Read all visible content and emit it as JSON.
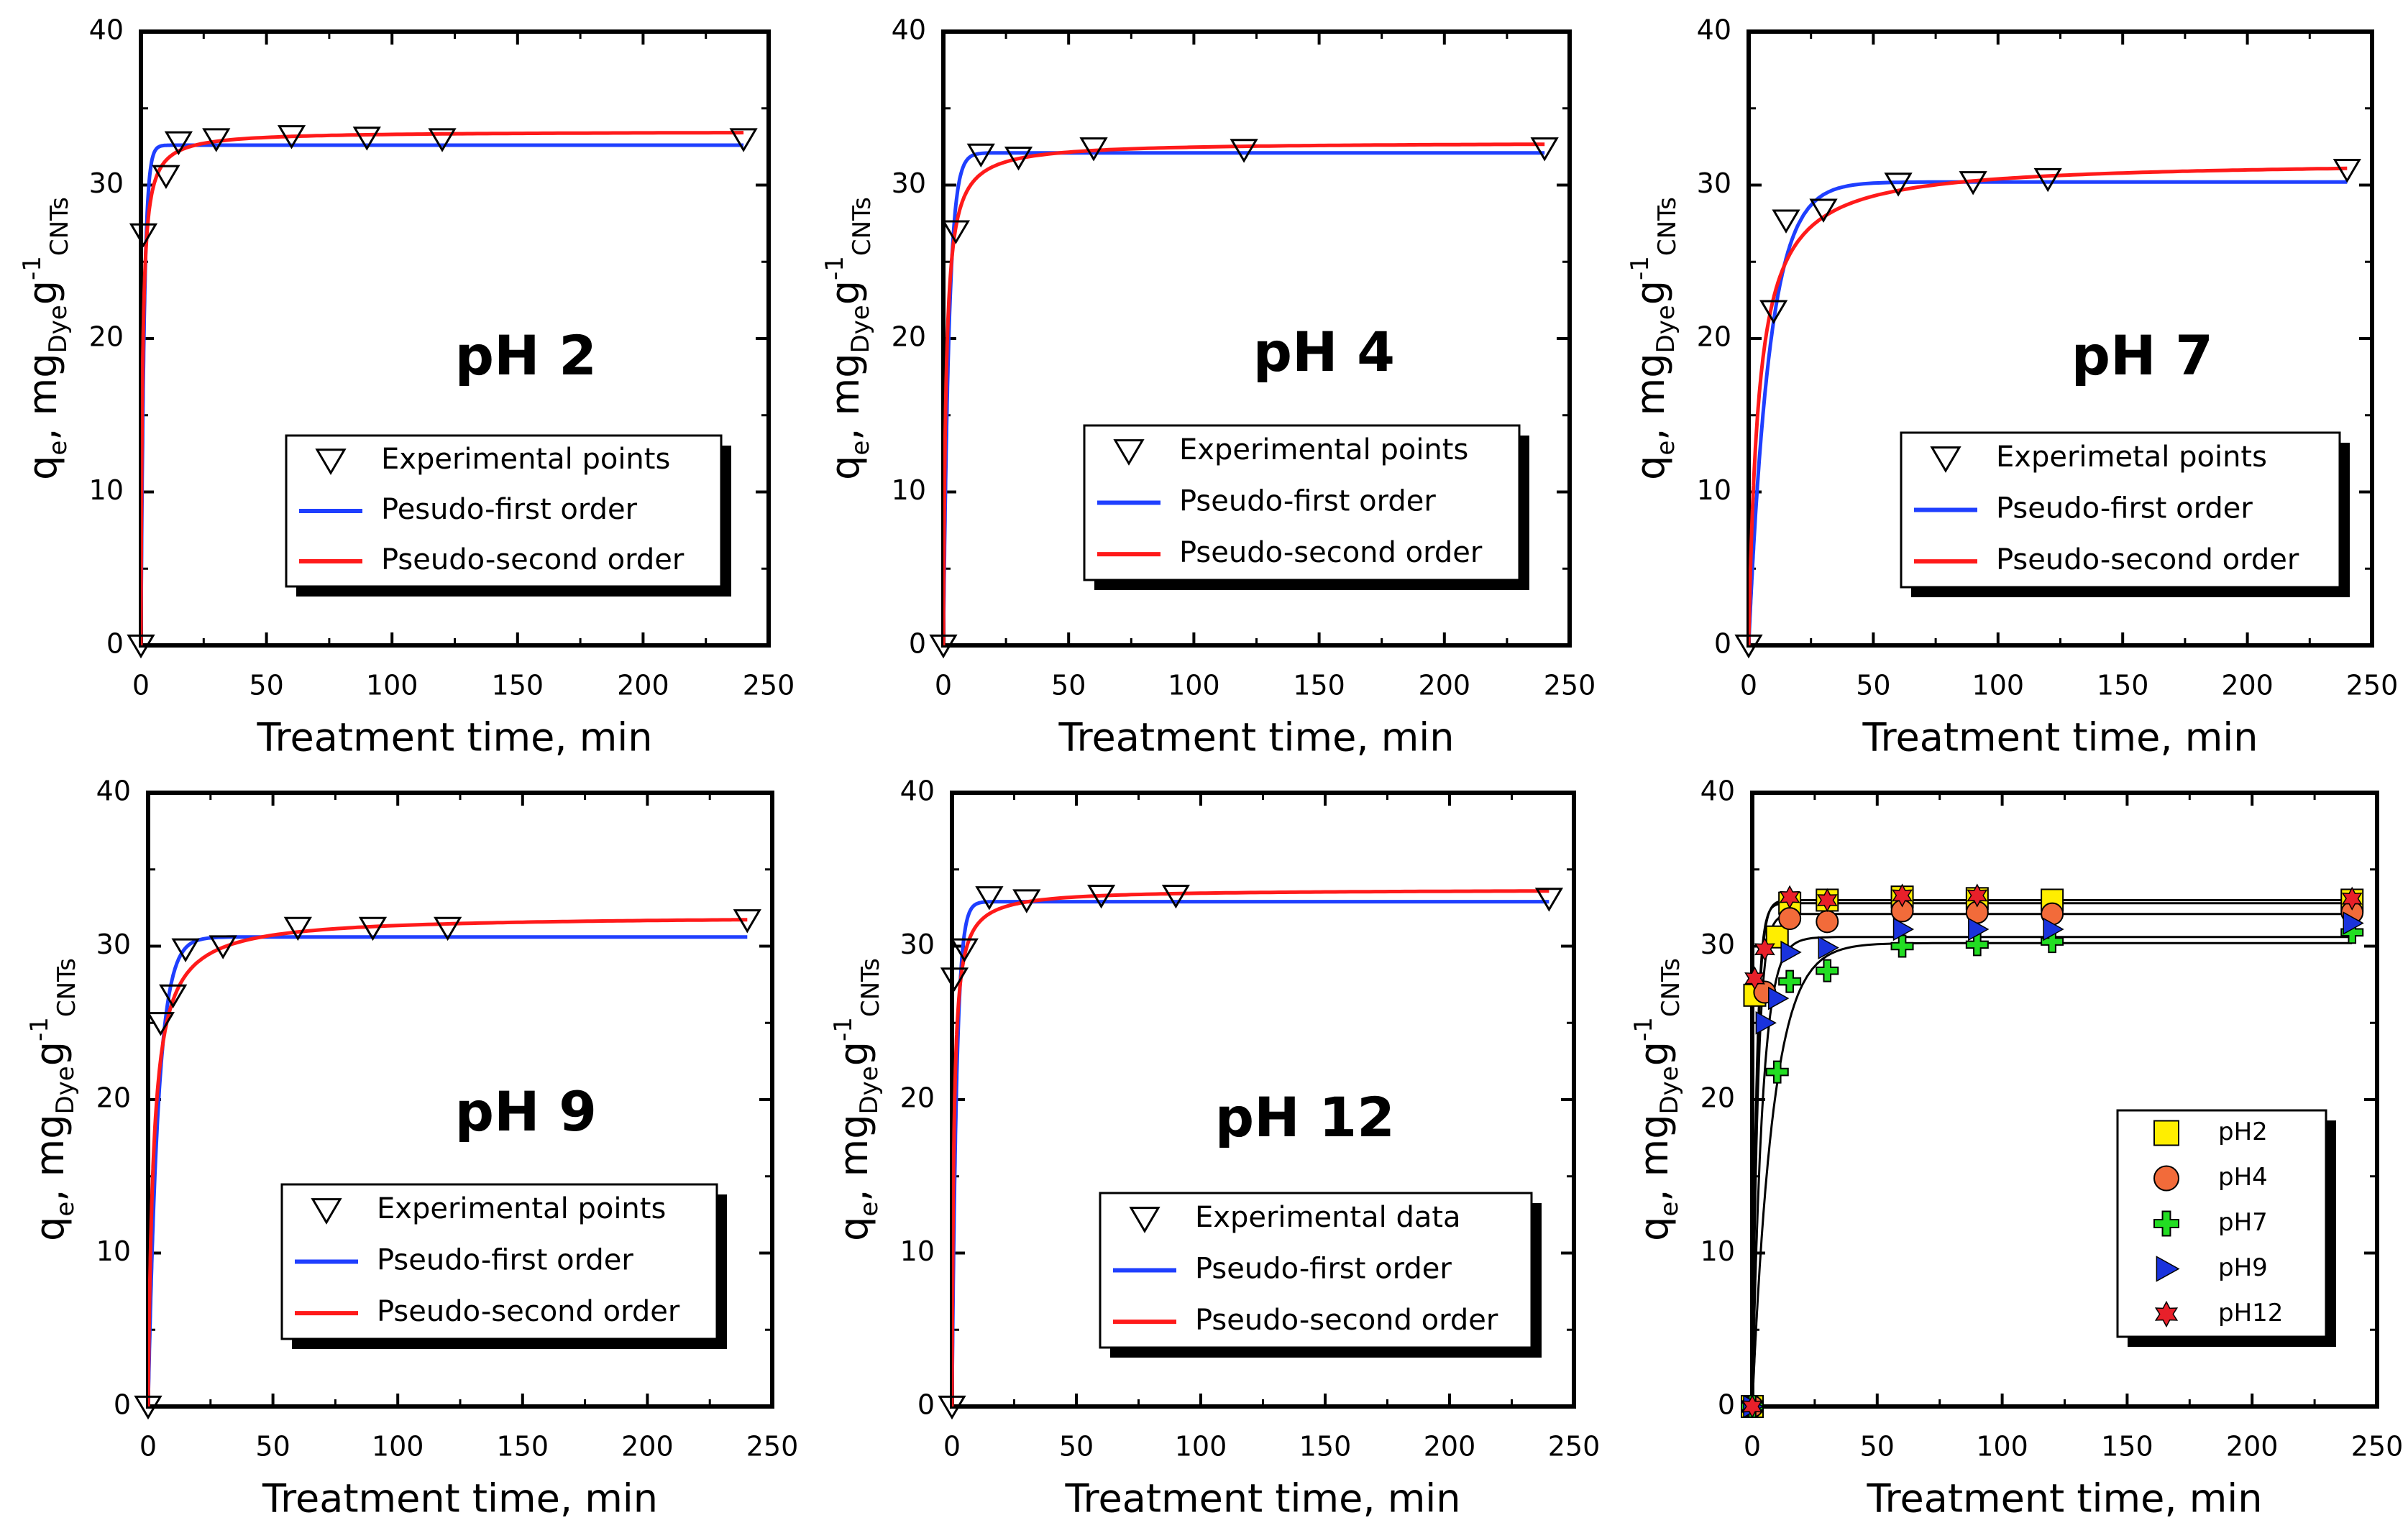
{
  "colors": {
    "pfo": "#1f3fff",
    "pso": "#ff1a1a",
    "fit_black": "#000000",
    "pH2": "#ffee00",
    "pH4": "#f26b3a",
    "pH7": "#22dd22",
    "pH9": "#1a33dd",
    "pH12": "#e8202a"
  },
  "chart_data": [
    {
      "type": "scatter",
      "title": "pH 2",
      "xlabel": "Treatment time, min",
      "ylabel": "q",
      "ylabel_sub1": "e",
      "ylabel_main2": ", mg",
      "ylabel_sub2": "Dye",
      "ylabel_main3": "g",
      "ylabel_sup": "-1",
      "ylabel_sub3": "CNTs",
      "xlim": [
        0,
        250
      ],
      "ylim": [
        0,
        40
      ],
      "xticks": [
        "0",
        "50",
        "100",
        "150",
        "200",
        "250"
      ],
      "yticks": [
        "0",
        "10",
        "20",
        "30",
        "40"
      ],
      "legend": [
        "Experimental points",
        "Pesudo-first order",
        "Pseudo-second order"
      ],
      "series": [
        {
          "name": "Experimental points",
          "x": [
            0,
            1,
            10,
            15,
            30,
            60,
            90,
            120,
            240
          ],
          "y": [
            0,
            26.8,
            30.6,
            32.8,
            33.0,
            33.2,
            33.1,
            33.0,
            33.0
          ]
        },
        {
          "name": "Pesudo-first order",
          "qe": 32.6,
          "k": 0.8
        },
        {
          "name": "Pseudo-second order",
          "qe": 33.5,
          "k": 0.05
        }
      ]
    },
    {
      "type": "scatter",
      "title": "pH 4",
      "xlabel": "Treatment time, min",
      "ylabel": "q",
      "ylabel_sub1": "e",
      "ylabel_main2": ", mg",
      "ylabel_sub2": "Dye",
      "ylabel_main3": "g",
      "ylabel_sup": "-1",
      "ylabel_sub3": "CNTs",
      "xlim": [
        0,
        250
      ],
      "ylim": [
        0,
        40
      ],
      "xticks": [
        "0",
        "50",
        "100",
        "150",
        "200",
        "250"
      ],
      "yticks": [
        "0",
        "10",
        "20",
        "30",
        "40"
      ],
      "legend": [
        "Experimental points",
        "Pseudo-first order",
        "Pseudo-second order"
      ],
      "series": [
        {
          "name": "Experimental points",
          "x": [
            0,
            5,
            15,
            30,
            60,
            120,
            240
          ],
          "y": [
            0,
            27.0,
            32.0,
            31.8,
            32.4,
            32.3,
            32.4
          ]
        },
        {
          "name": "Pseudo-first order",
          "qe": 32.1,
          "k": 0.45
        },
        {
          "name": "Pseudo-second order",
          "qe": 32.8,
          "k": 0.03
        }
      ]
    },
    {
      "type": "scatter",
      "title": "pH 7",
      "xlabel": "Treatment time, min",
      "ylabel": "q",
      "ylabel_sub1": "e",
      "ylabel_main2": ", mg",
      "ylabel_sub2": "Dye",
      "ylabel_main3": "g",
      "ylabel_sup": "-1",
      "ylabel_sub3": "CNTs",
      "xlim": [
        0,
        250
      ],
      "ylim": [
        0,
        40
      ],
      "xticks": [
        "0",
        "50",
        "100",
        "150",
        "200",
        "250"
      ],
      "yticks": [
        "0",
        "10",
        "20",
        "30",
        "40"
      ],
      "legend": [
        "Experimetal points",
        "Pseudo-first order",
        "Pseudo-second order"
      ],
      "series": [
        {
          "name": "Experimetal points",
          "x": [
            0,
            10,
            15,
            30,
            60,
            90,
            120,
            240
          ],
          "y": [
            0,
            21.8,
            27.7,
            28.4,
            30.1,
            30.2,
            30.4,
            31.0
          ]
        },
        {
          "name": "Pseudo-first order",
          "qe": 30.2,
          "k": 0.12
        },
        {
          "name": "Pseudo-second order",
          "qe": 31.6,
          "k": 0.008
        }
      ]
    },
    {
      "type": "scatter",
      "title": "pH 9",
      "xlabel": "Treatment time, min",
      "ylabel": "q",
      "ylabel_sub1": "e",
      "ylabel_main2": ", mg",
      "ylabel_sub2": "Dye",
      "ylabel_main3": "g",
      "ylabel_sup": "-1",
      "ylabel_sub3": "CNTs",
      "xlim": [
        0,
        250
      ],
      "ylim": [
        0,
        40
      ],
      "xticks": [
        "0",
        "50",
        "100",
        "150",
        "200",
        "250"
      ],
      "yticks": [
        "0",
        "10",
        "20",
        "30",
        "40"
      ],
      "legend": [
        "Experimental points",
        "Pseudo-first order",
        "Pseudo-second order"
      ],
      "series": [
        {
          "name": "Experimental points",
          "x": [
            0,
            5,
            10,
            15,
            30,
            60,
            90,
            120,
            240
          ],
          "y": [
            0,
            25.0,
            26.8,
            29.8,
            30.0,
            31.2,
            31.2,
            31.2,
            31.7
          ]
        },
        {
          "name": "Pseudo-first order",
          "qe": 30.6,
          "k": 0.25
        },
        {
          "name": "Pseudo-second order",
          "qe": 32.0,
          "k": 0.015
        }
      ]
    },
    {
      "type": "scatter",
      "title": "pH 12",
      "xlabel": "Treatment time, min",
      "ylabel": "q",
      "ylabel_sub1": "e",
      "ylabel_main2": ", mg",
      "ylabel_sub2": "Dye",
      "ylabel_main3": "g",
      "ylabel_sup": "-1",
      "ylabel_sub3": "CNTs",
      "xlim": [
        0,
        250
      ],
      "ylim": [
        0,
        40
      ],
      "xticks": [
        "0",
        "50",
        "100",
        "150",
        "200",
        "250"
      ],
      "yticks": [
        "0",
        "10",
        "20",
        "30",
        "40"
      ],
      "legend": [
        "Experimental data",
        "Pseudo-first order",
        "Pseudo-second order"
      ],
      "series": [
        {
          "name": "Experimental data",
          "x": [
            0,
            1,
            5,
            15,
            30,
            60,
            90,
            240
          ],
          "y": [
            0,
            27.9,
            29.8,
            33.2,
            33.0,
            33.3,
            33.3,
            33.1
          ]
        },
        {
          "name": "Pseudo-first order",
          "qe": 32.9,
          "k": 0.55
        },
        {
          "name": "Pseudo-second order",
          "qe": 33.7,
          "k": 0.04
        }
      ]
    },
    {
      "type": "scatter",
      "title": "",
      "xlabel": "Treatment time, min",
      "ylabel": "q",
      "ylabel_sub1": "e",
      "ylabel_main2": ", mg",
      "ylabel_sub2": "Dye",
      "ylabel_main3": "g",
      "ylabel_sup": "-1",
      "ylabel_sub3": "CNTs",
      "xlim": [
        0,
        250
      ],
      "ylim": [
        0,
        40
      ],
      "xticks": [
        "0",
        "50",
        "100",
        "150",
        "200",
        "250"
      ],
      "yticks": [
        "0",
        "10",
        "20",
        "30",
        "40"
      ],
      "legend": [
        "pH2",
        "pH4",
        "pH7",
        "pH9",
        "pH12"
      ],
      "series": [
        {
          "name": "pH2",
          "marker": "square",
          "x": [
            0,
            1,
            10,
            15,
            30,
            60,
            90,
            120,
            240
          ],
          "y": [
            0,
            26.8,
            30.6,
            32.8,
            33.0,
            33.2,
            33.1,
            33.0,
            33.0
          ],
          "fit_qe": 32.8,
          "fit_k": 0.6
        },
        {
          "name": "pH4",
          "marker": "circle",
          "x": [
            0,
            5,
            15,
            30,
            60,
            90,
            120,
            240
          ],
          "y": [
            0,
            27.0,
            31.8,
            31.6,
            32.3,
            32.2,
            32.1,
            32.2
          ],
          "fit_qe": 32.1,
          "fit_k": 0.45
        },
        {
          "name": "pH7",
          "marker": "plus",
          "x": [
            0,
            10,
            15,
            30,
            60,
            90,
            120,
            240
          ],
          "y": [
            0,
            21.8,
            27.7,
            28.4,
            30.0,
            30.1,
            30.3,
            30.9
          ],
          "fit_qe": 30.2,
          "fit_k": 0.12
        },
        {
          "name": "pH9",
          "marker": "triangle-right",
          "x": [
            0,
            5,
            10,
            15,
            30,
            60,
            90,
            120,
            240
          ],
          "y": [
            0,
            25.0,
            26.6,
            29.6,
            29.9,
            31.1,
            31.1,
            31.1,
            31.5
          ],
          "fit_qe": 30.6,
          "fit_k": 0.25
        },
        {
          "name": "pH12",
          "marker": "star",
          "x": [
            0,
            1,
            5,
            15,
            30,
            60,
            90,
            240
          ],
          "y": [
            0,
            27.9,
            29.8,
            33.2,
            33.0,
            33.3,
            33.3,
            33.1
          ],
          "fit_qe": 33.0,
          "fit_k": 0.55
        }
      ]
    }
  ]
}
